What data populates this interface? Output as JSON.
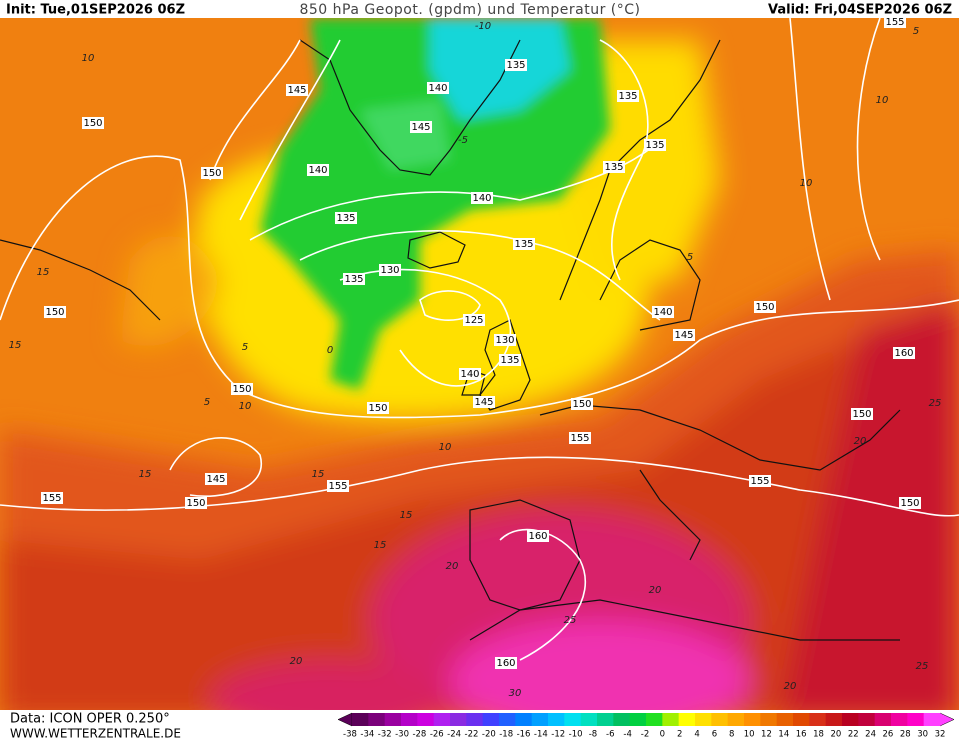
{
  "header": {
    "init": "Init: Tue,01SEP2026 06Z",
    "title": "850 hPa Geopot. (gpdm) und Temperatur (°C)",
    "valid": "Valid: Fri,04SEP2026 06Z"
  },
  "footer": {
    "source": "Data: ICON OPER 0.250°",
    "website": "WWW.WETTERZENTRALE.DE"
  },
  "geopotential_labels": [
    "145",
    "150",
    "150",
    "140",
    "135",
    "145",
    "135",
    "135",
    "135",
    "140",
    "140",
    "135",
    "135",
    "130",
    "135",
    "150",
    "125",
    "140",
    "150",
    "145",
    "130",
    "135",
    "140",
    "160",
    "150",
    "145",
    "150",
    "150",
    "150",
    "155",
    "145",
    "155",
    "155",
    "150",
    "155",
    "150",
    "160",
    "160",
    "155"
  ],
  "temperature_labels": [
    "-10",
    "5",
    "10",
    "10",
    "10",
    "15",
    "15",
    "5",
    "0",
    "5",
    "10",
    "10",
    "15",
    "15",
    "15",
    "20",
    "20",
    "15",
    "25",
    "20",
    "25",
    "20",
    "20",
    "30",
    "25",
    "5",
    "-5"
  ],
  "colorbar": {
    "labels": [
      -38,
      -34,
      -32,
      -30,
      -28,
      -26,
      -24,
      -22,
      -20,
      -18,
      -16,
      -14,
      -12,
      -10,
      -8,
      -6,
      -4,
      -2,
      0,
      2,
      4,
      6,
      8,
      10,
      12,
      14,
      16,
      18,
      20,
      22,
      24,
      26,
      28,
      30,
      32
    ],
    "colors": [
      "#5a0058",
      "#7a007a",
      "#9a00a0",
      "#b400c8",
      "#cc00e0",
      "#b020f0",
      "#8a2be2",
      "#6a30f0",
      "#4040ff",
      "#2060ff",
      "#0080ff",
      "#00a0ff",
      "#00c0ff",
      "#00e0f0",
      "#00e0c0",
      "#00d090",
      "#00c060",
      "#00d040",
      "#20e020",
      "#a0f000",
      "#ffff00",
      "#ffe000",
      "#ffc000",
      "#ffa800",
      "#ff9000",
      "#f07800",
      "#e86000",
      "#e04800",
      "#d83018",
      "#c81818",
      "#b80020",
      "#c0003c",
      "#d80070",
      "#f000a0",
      "#ff00c8",
      "#ff40ff"
    ]
  }
}
